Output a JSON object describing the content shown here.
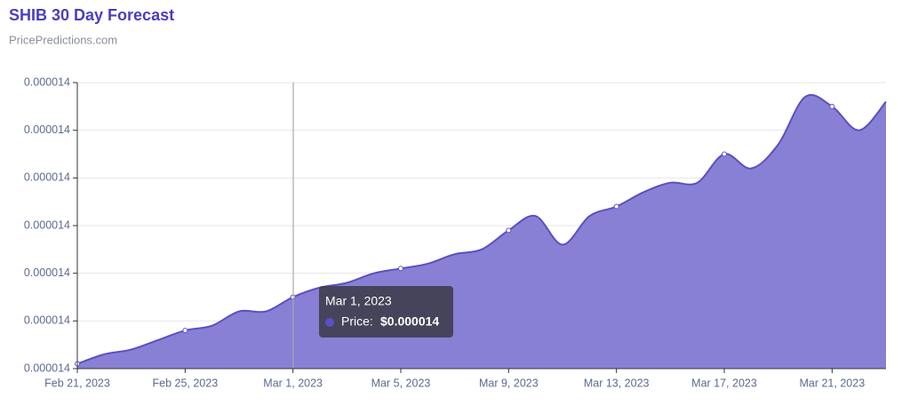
{
  "chart_data": {
    "type": "area",
    "title": "SHIB 30 Day Forecast",
    "subtitle": "PricePredictions.com",
    "categories": [
      "Feb 21, 2023",
      null,
      null,
      null,
      "Feb 25, 2023",
      null,
      null,
      null,
      "Mar 1, 2023",
      null,
      null,
      null,
      "Mar 5, 2023",
      null,
      null,
      null,
      "Mar 9, 2023",
      null,
      null,
      null,
      "Mar 13, 2023",
      null,
      null,
      null,
      "Mar 17, 2023",
      null,
      null,
      null,
      "Mar 21, 2023",
      null,
      null
    ],
    "series": [
      {
        "name": "Price",
        "color": "#5b4fc4",
        "values": [
          1.361e-05,
          1.363e-05,
          1.364e-05,
          1.366e-05,
          1.368e-05,
          1.369e-05,
          1.372e-05,
          1.372e-05,
          1.375e-05,
          1.377e-05,
          1.378e-05,
          1.38e-05,
          1.381e-05,
          1.382e-05,
          1.384e-05,
          1.385e-05,
          1.389e-05,
          1.392e-05,
          1.386e-05,
          1.392e-05,
          1.394e-05,
          1.397e-05,
          1.399e-05,
          1.399e-05,
          1.405e-05,
          1.402e-05,
          1.407e-05,
          1.417e-05,
          1.415e-05,
          1.41e-05,
          1.416e-05
        ]
      }
    ],
    "ylim": [
      1.36e-05,
      1.42e-05
    ],
    "yticks": [
      {
        "value": 1.36e-05,
        "label": "0.000014"
      },
      {
        "value": 1.37e-05,
        "label": "0.000014"
      },
      {
        "value": 1.38e-05,
        "label": "0.000014"
      },
      {
        "value": 1.39e-05,
        "label": "0.000014"
      },
      {
        "value": 1.4e-05,
        "label": "0.000014"
      },
      {
        "value": 1.41e-05,
        "label": "0.000014"
      },
      {
        "value": 1.42e-05,
        "label": "0.000014"
      }
    ],
    "grid": true,
    "tooltip": {
      "label": "Price:",
      "value": "$0.000014"
    }
  }
}
